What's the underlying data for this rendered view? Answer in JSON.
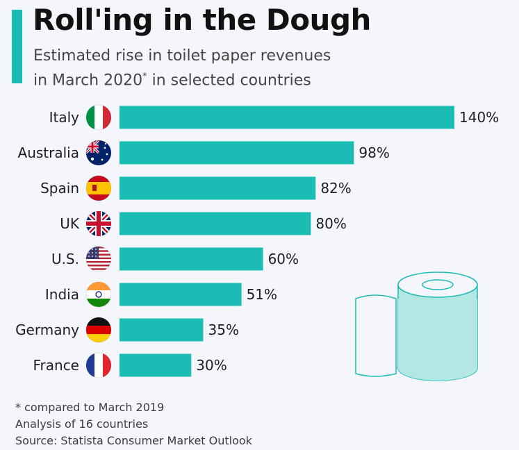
{
  "title": "Roll'ing in the Dough",
  "subtitle_line1": "Estimated rise in toilet paper revenues",
  "subtitle_line2_pre": "in March 2020",
  "subtitle_sup": "*",
  "subtitle_line2_post": " in selected countries",
  "colors": {
    "accent": "#1abcb4",
    "bar": "#1abcb4",
    "roll_fill": "#b2e7e4",
    "roll_stroke": "#1abcb4"
  },
  "chart_data": {
    "type": "bar",
    "orientation": "horizontal",
    "categories": [
      "Italy",
      "Australia",
      "Spain",
      "UK",
      "U.S.",
      "India",
      "Germany",
      "France"
    ],
    "values": [
      140,
      98,
      82,
      80,
      60,
      51,
      35,
      30
    ],
    "value_labels": [
      "140%",
      "98%",
      "82%",
      "80%",
      "60%",
      "51%",
      "35%",
      "30%"
    ],
    "flags": [
      "italy-flag-icon",
      "australia-flag-icon",
      "spain-flag-icon",
      "uk-flag-icon",
      "us-flag-icon",
      "india-flag-icon",
      "germany-flag-icon",
      "france-flag-icon"
    ],
    "xlim": [
      0,
      140
    ],
    "grid": false
  },
  "footer": {
    "note": "* compared to March 2019",
    "analysis": "Analysis of 16 countries",
    "source": "Source: Statista Consumer Market Outlook"
  }
}
